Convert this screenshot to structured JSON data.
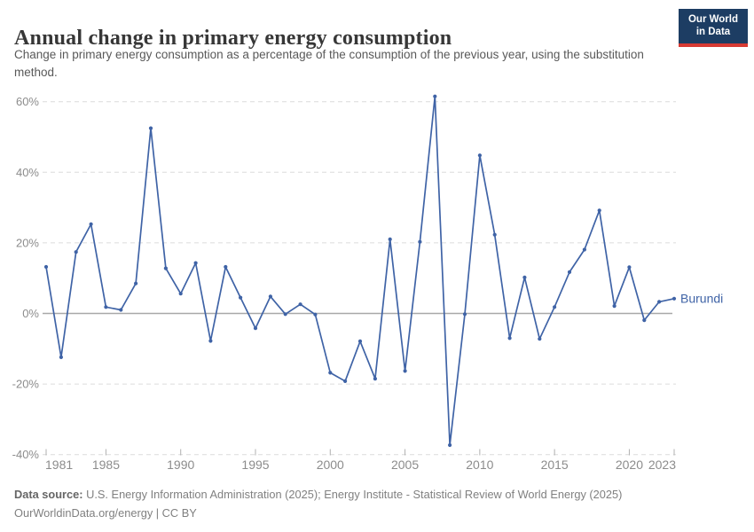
{
  "header": {
    "title": "Annual change in primary energy consumption",
    "subtitle": "Change in primary energy consumption as a percentage of the consumption of the previous year, using the substitution method.",
    "logo": {
      "line1": "Our World",
      "line2": "in Data"
    }
  },
  "chart_data": {
    "type": "line",
    "title": "Annual change in primary energy consumption",
    "xlabel": "",
    "ylabel": "",
    "xlim": [
      1981,
      2023
    ],
    "ylim": [
      -40,
      63
    ],
    "grid": "horizontal-dashed",
    "zero_line": true,
    "legend_position": "end-of-line-label",
    "x_ticks": [
      1981,
      1985,
      1990,
      1995,
      2000,
      2005,
      2010,
      2015,
      2020,
      2023
    ],
    "y_ticks": [
      60,
      40,
      20,
      0,
      -20,
      -40
    ],
    "y_tick_suffix": "%",
    "series": [
      {
        "name": "Burundi",
        "x": [
          1981,
          1982,
          1983,
          1984,
          1985,
          1986,
          1987,
          1988,
          1989,
          1990,
          1991,
          1992,
          1993,
          1994,
          1995,
          1996,
          1997,
          1998,
          1999,
          2000,
          2001,
          2002,
          2003,
          2004,
          2005,
          2006,
          2007,
          2008,
          2009,
          2010,
          2011,
          2012,
          2013,
          2014,
          2015,
          2016,
          2017,
          2018,
          2019,
          2020,
          2021,
          2022,
          2023
        ],
        "values": [
          13.2,
          -12.4,
          17.4,
          25.3,
          1.8,
          1.0,
          8.5,
          52.5,
          12.8,
          5.6,
          14.3,
          -7.8,
          13.2,
          4.5,
          -4.2,
          4.8,
          -0.2,
          2.6,
          -0.3,
          -16.8,
          -19.2,
          -7.9,
          -18.5,
          21.0,
          -16.3,
          20.3,
          61.5,
          -37.3,
          -0.2,
          44.8,
          22.3,
          -7.0,
          10.2,
          -7.2,
          1.8,
          11.7,
          18.1,
          29.2,
          2.1,
          13.1,
          -1.9,
          3.3,
          4.2
        ]
      }
    ],
    "entity_label": "Burundi"
  },
  "footer": {
    "source_label": "Data source:",
    "source_text": " U.S. Energy Information Administration (2025); Energy Institute - Statistical Review of World Energy (2025)",
    "link_line": "OurWorldinData.org/energy | CC BY"
  },
  "colors": {
    "line": "#3f63a6",
    "grid": "#dcdcdc",
    "zero_line": "#a8a8a8",
    "tick_mark": "#b0b0b0",
    "tick_text": "#8c8c8c",
    "logo_bg": "#1d3d63",
    "logo_red": "#d73a33"
  }
}
